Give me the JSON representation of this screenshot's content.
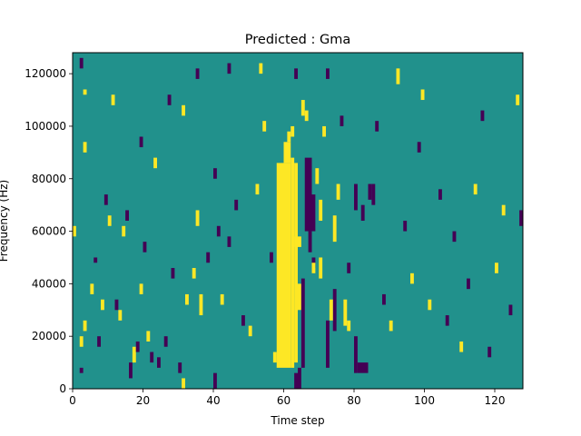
{
  "colors": {
    "background": "#21918c",
    "high": "#fde725",
    "low": "#440154"
  },
  "chart_data": {
    "type": "heatmap",
    "title": "Predicted : Gma",
    "xlabel": "Time step",
    "ylabel": "Frequency (Hz)",
    "xlim": [
      0,
      128
    ],
    "ylim": [
      0,
      128000
    ],
    "xticks": [
      0,
      20,
      40,
      60,
      80,
      100,
      120
    ],
    "yticks": [
      0,
      20000,
      40000,
      60000,
      80000,
      100000,
      120000
    ],
    "grid": false,
    "cell_width": 1,
    "cell_height": 2000,
    "default_value": 0,
    "value_scale": {
      "-1": "low",
      "0": "background",
      "1": "high"
    },
    "cells": [
      {
        "x": 58,
        "y": 8000,
        "w": 4,
        "h": 78000,
        "v": 1
      },
      {
        "x": 62,
        "y": 8000,
        "w": 1,
        "h": 80000,
        "v": 1
      },
      {
        "x": 63,
        "y": 10000,
        "w": 1,
        "h": 76000,
        "v": 1
      },
      {
        "x": 60,
        "y": 86000,
        "w": 2,
        "h": 8000,
        "v": 1
      },
      {
        "x": 61,
        "y": 94000,
        "w": 1,
        "h": 4000,
        "v": 1
      },
      {
        "x": 63,
        "y": 54000,
        "w": 2,
        "h": 4000,
        "v": 1
      },
      {
        "x": 64,
        "y": 30000,
        "w": 1,
        "h": 10000,
        "v": 1
      },
      {
        "x": 63,
        "y": 0,
        "w": 1,
        "h": 6000,
        "v": -1
      },
      {
        "x": 64,
        "y": 0,
        "w": 1,
        "h": 8000,
        "v": -1
      },
      {
        "x": 65,
        "y": 8000,
        "w": 1,
        "h": 34000,
        "v": -1
      },
      {
        "x": 66,
        "y": 60000,
        "w": 2,
        "h": 28000,
        "v": -1
      },
      {
        "x": 67,
        "y": 52000,
        "w": 1,
        "h": 8000,
        "v": -1
      },
      {
        "x": 68,
        "y": 60000,
        "w": 1,
        "h": 14000,
        "v": -1
      },
      {
        "x": 68,
        "y": 46000,
        "w": 1,
        "h": 4000,
        "v": -1
      },
      {
        "x": 72,
        "y": 8000,
        "w": 1,
        "h": 18000,
        "v": -1
      },
      {
        "x": 74,
        "y": 22000,
        "w": 1,
        "h": 16000,
        "v": -1
      },
      {
        "x": 80,
        "y": 6000,
        "w": 1,
        "h": 14000,
        "v": -1
      },
      {
        "x": 81,
        "y": 6000,
        "w": 3,
        "h": 4000,
        "v": -1
      },
      {
        "x": 84,
        "y": 72000,
        "w": 1,
        "h": 6000,
        "v": -1
      },
      {
        "x": 85,
        "y": 70000,
        "w": 1,
        "h": 8000,
        "v": -1
      },
      {
        "x": 80,
        "y": 68000,
        "w": 1,
        "h": 10000,
        "v": -1
      },
      {
        "x": 77,
        "y": 24000,
        "w": 1,
        "h": 10000,
        "v": 1
      },
      {
        "x": 78,
        "y": 22000,
        "w": 1,
        "h": 4000,
        "v": 1
      },
      {
        "x": 73,
        "y": 26000,
        "w": 1,
        "h": 8000,
        "v": 1
      },
      {
        "x": 70,
        "y": 42000,
        "w": 1,
        "h": 8000,
        "v": 1
      },
      {
        "x": 70,
        "y": 64000,
        "w": 1,
        "h": 8000,
        "v": 1
      },
      {
        "x": 74,
        "y": 56000,
        "w": 1,
        "h": 10000,
        "v": 1
      },
      {
        "x": 68,
        "y": 44000,
        "w": 1,
        "h": 4000,
        "v": 1
      },
      {
        "x": 63,
        "y": 118000,
        "w": 1,
        "h": 4000,
        "v": -1
      },
      {
        "x": 65,
        "y": 104000,
        "w": 1,
        "h": 6000,
        "v": 1
      },
      {
        "x": 62,
        "y": 96000,
        "w": 1,
        "h": 4000,
        "v": 1
      },
      {
        "x": 66,
        "y": 102000,
        "w": 1,
        "h": 4000,
        "v": 1
      },
      {
        "x": 2,
        "y": 122000,
        "w": 1,
        "h": 4000,
        "v": -1
      },
      {
        "x": 2,
        "y": 6000,
        "w": 1,
        "h": 2000,
        "v": -1
      },
      {
        "x": 0,
        "y": 58000,
        "w": 1,
        "h": 4000,
        "v": 1
      },
      {
        "x": 2,
        "y": 16000,
        "w": 1,
        "h": 4000,
        "v": 1
      },
      {
        "x": 3,
        "y": 22000,
        "w": 1,
        "h": 4000,
        "v": 1
      },
      {
        "x": 3,
        "y": 90000,
        "w": 1,
        "h": 4000,
        "v": 1
      },
      {
        "x": 3,
        "y": 112000,
        "w": 1,
        "h": 2000,
        "v": 1
      },
      {
        "x": 5,
        "y": 36000,
        "w": 1,
        "h": 4000,
        "v": 1
      },
      {
        "x": 6,
        "y": 48000,
        "w": 1,
        "h": 2000,
        "v": -1
      },
      {
        "x": 7,
        "y": 16000,
        "w": 1,
        "h": 4000,
        "v": -1
      },
      {
        "x": 8,
        "y": 30000,
        "w": 1,
        "h": 4000,
        "v": 1
      },
      {
        "x": 9,
        "y": 70000,
        "w": 1,
        "h": 4000,
        "v": -1
      },
      {
        "x": 10,
        "y": 62000,
        "w": 1,
        "h": 4000,
        "v": 1
      },
      {
        "x": 11,
        "y": 108000,
        "w": 1,
        "h": 4000,
        "v": 1
      },
      {
        "x": 12,
        "y": 30000,
        "w": 1,
        "h": 4000,
        "v": -1
      },
      {
        "x": 13,
        "y": 26000,
        "w": 1,
        "h": 4000,
        "v": 1
      },
      {
        "x": 14,
        "y": 58000,
        "w": 1,
        "h": 4000,
        "v": 1
      },
      {
        "x": 15,
        "y": 64000,
        "w": 1,
        "h": 4000,
        "v": -1
      },
      {
        "x": 16,
        "y": 4000,
        "w": 1,
        "h": 6000,
        "v": -1
      },
      {
        "x": 17,
        "y": 10000,
        "w": 1,
        "h": 6000,
        "v": 1
      },
      {
        "x": 18,
        "y": 14000,
        "w": 1,
        "h": 4000,
        "v": -1
      },
      {
        "x": 19,
        "y": 36000,
        "w": 1,
        "h": 4000,
        "v": 1
      },
      {
        "x": 20,
        "y": 52000,
        "w": 1,
        "h": 4000,
        "v": -1
      },
      {
        "x": 21,
        "y": 18000,
        "w": 1,
        "h": 4000,
        "v": 1
      },
      {
        "x": 22,
        "y": 10000,
        "w": 1,
        "h": 4000,
        "v": -1
      },
      {
        "x": 24,
        "y": 8000,
        "w": 1,
        "h": 4000,
        "v": -1
      },
      {
        "x": 26,
        "y": 16000,
        "w": 1,
        "h": 4000,
        "v": -1
      },
      {
        "x": 28,
        "y": 42000,
        "w": 1,
        "h": 4000,
        "v": -1
      },
      {
        "x": 30,
        "y": 6000,
        "w": 1,
        "h": 4000,
        "v": -1
      },
      {
        "x": 31,
        "y": 0,
        "w": 1,
        "h": 4000,
        "v": 1
      },
      {
        "x": 32,
        "y": 32000,
        "w": 1,
        "h": 4000,
        "v": 1
      },
      {
        "x": 34,
        "y": 42000,
        "w": 1,
        "h": 4000,
        "v": 1
      },
      {
        "x": 35,
        "y": 62000,
        "w": 1,
        "h": 6000,
        "v": 1
      },
      {
        "x": 36,
        "y": 28000,
        "w": 1,
        "h": 8000,
        "v": 1
      },
      {
        "x": 38,
        "y": 48000,
        "w": 1,
        "h": 4000,
        "v": -1
      },
      {
        "x": 40,
        "y": 0,
        "w": 1,
        "h": 6000,
        "v": -1
      },
      {
        "x": 41,
        "y": 58000,
        "w": 1,
        "h": 4000,
        "v": -1
      },
      {
        "x": 42,
        "y": 32000,
        "w": 1,
        "h": 4000,
        "v": 1
      },
      {
        "x": 44,
        "y": 54000,
        "w": 1,
        "h": 4000,
        "v": -1
      },
      {
        "x": 46,
        "y": 68000,
        "w": 1,
        "h": 4000,
        "v": -1
      },
      {
        "x": 48,
        "y": 24000,
        "w": 1,
        "h": 4000,
        "v": -1
      },
      {
        "x": 50,
        "y": 20000,
        "w": 1,
        "h": 4000,
        "v": 1
      },
      {
        "x": 52,
        "y": 74000,
        "w": 1,
        "h": 4000,
        "v": 1
      },
      {
        "x": 54,
        "y": 98000,
        "w": 1,
        "h": 4000,
        "v": 1
      },
      {
        "x": 56,
        "y": 48000,
        "w": 1,
        "h": 4000,
        "v": -1
      },
      {
        "x": 57,
        "y": 10000,
        "w": 1,
        "h": 4000,
        "v": 1
      },
      {
        "x": 44,
        "y": 120000,
        "w": 1,
        "h": 4000,
        "v": -1
      },
      {
        "x": 53,
        "y": 120000,
        "w": 1,
        "h": 4000,
        "v": 1
      },
      {
        "x": 27,
        "y": 108000,
        "w": 1,
        "h": 4000,
        "v": -1
      },
      {
        "x": 31,
        "y": 104000,
        "w": 1,
        "h": 4000,
        "v": 1
      },
      {
        "x": 35,
        "y": 118000,
        "w": 1,
        "h": 4000,
        "v": -1
      },
      {
        "x": 19,
        "y": 92000,
        "w": 1,
        "h": 4000,
        "v": -1
      },
      {
        "x": 23,
        "y": 84000,
        "w": 1,
        "h": 4000,
        "v": 1
      },
      {
        "x": 40,
        "y": 80000,
        "w": 1,
        "h": 4000,
        "v": -1
      },
      {
        "x": 69,
        "y": 78000,
        "w": 1,
        "h": 6000,
        "v": 1
      },
      {
        "x": 71,
        "y": 96000,
        "w": 1,
        "h": 4000,
        "v": 1
      },
      {
        "x": 72,
        "y": 118000,
        "w": 1,
        "h": 4000,
        "v": -1
      },
      {
        "x": 75,
        "y": 72000,
        "w": 1,
        "h": 6000,
        "v": 1
      },
      {
        "x": 76,
        "y": 100000,
        "w": 1,
        "h": 4000,
        "v": -1
      },
      {
        "x": 78,
        "y": 44000,
        "w": 1,
        "h": 4000,
        "v": -1
      },
      {
        "x": 82,
        "y": 64000,
        "w": 1,
        "h": 6000,
        "v": -1
      },
      {
        "x": 86,
        "y": 98000,
        "w": 1,
        "h": 4000,
        "v": -1
      },
      {
        "x": 88,
        "y": 32000,
        "w": 1,
        "h": 4000,
        "v": -1
      },
      {
        "x": 90,
        "y": 22000,
        "w": 1,
        "h": 4000,
        "v": 1
      },
      {
        "x": 92,
        "y": 116000,
        "w": 1,
        "h": 6000,
        "v": 1
      },
      {
        "x": 94,
        "y": 60000,
        "w": 1,
        "h": 4000,
        "v": -1
      },
      {
        "x": 96,
        "y": 40000,
        "w": 1,
        "h": 4000,
        "v": 1
      },
      {
        "x": 98,
        "y": 90000,
        "w": 1,
        "h": 4000,
        "v": -1
      },
      {
        "x": 99,
        "y": 110000,
        "w": 1,
        "h": 4000,
        "v": 1
      },
      {
        "x": 101,
        "y": 30000,
        "w": 1,
        "h": 4000,
        "v": 1
      },
      {
        "x": 104,
        "y": 72000,
        "w": 1,
        "h": 4000,
        "v": -1
      },
      {
        "x": 106,
        "y": 24000,
        "w": 1,
        "h": 4000,
        "v": -1
      },
      {
        "x": 108,
        "y": 56000,
        "w": 1,
        "h": 4000,
        "v": -1
      },
      {
        "x": 110,
        "y": 14000,
        "w": 1,
        "h": 4000,
        "v": 1
      },
      {
        "x": 112,
        "y": 38000,
        "w": 1,
        "h": 4000,
        "v": -1
      },
      {
        "x": 114,
        "y": 74000,
        "w": 1,
        "h": 4000,
        "v": 1
      },
      {
        "x": 116,
        "y": 102000,
        "w": 1,
        "h": 4000,
        "v": -1
      },
      {
        "x": 118,
        "y": 12000,
        "w": 1,
        "h": 4000,
        "v": -1
      },
      {
        "x": 120,
        "y": 44000,
        "w": 1,
        "h": 4000,
        "v": 1
      },
      {
        "x": 122,
        "y": 66000,
        "w": 1,
        "h": 4000,
        "v": 1
      },
      {
        "x": 124,
        "y": 28000,
        "w": 1,
        "h": 4000,
        "v": -1
      },
      {
        "x": 126,
        "y": 108000,
        "w": 1,
        "h": 4000,
        "v": 1
      },
      {
        "x": 127,
        "y": 62000,
        "w": 1,
        "h": 6000,
        "v": -1
      }
    ]
  }
}
